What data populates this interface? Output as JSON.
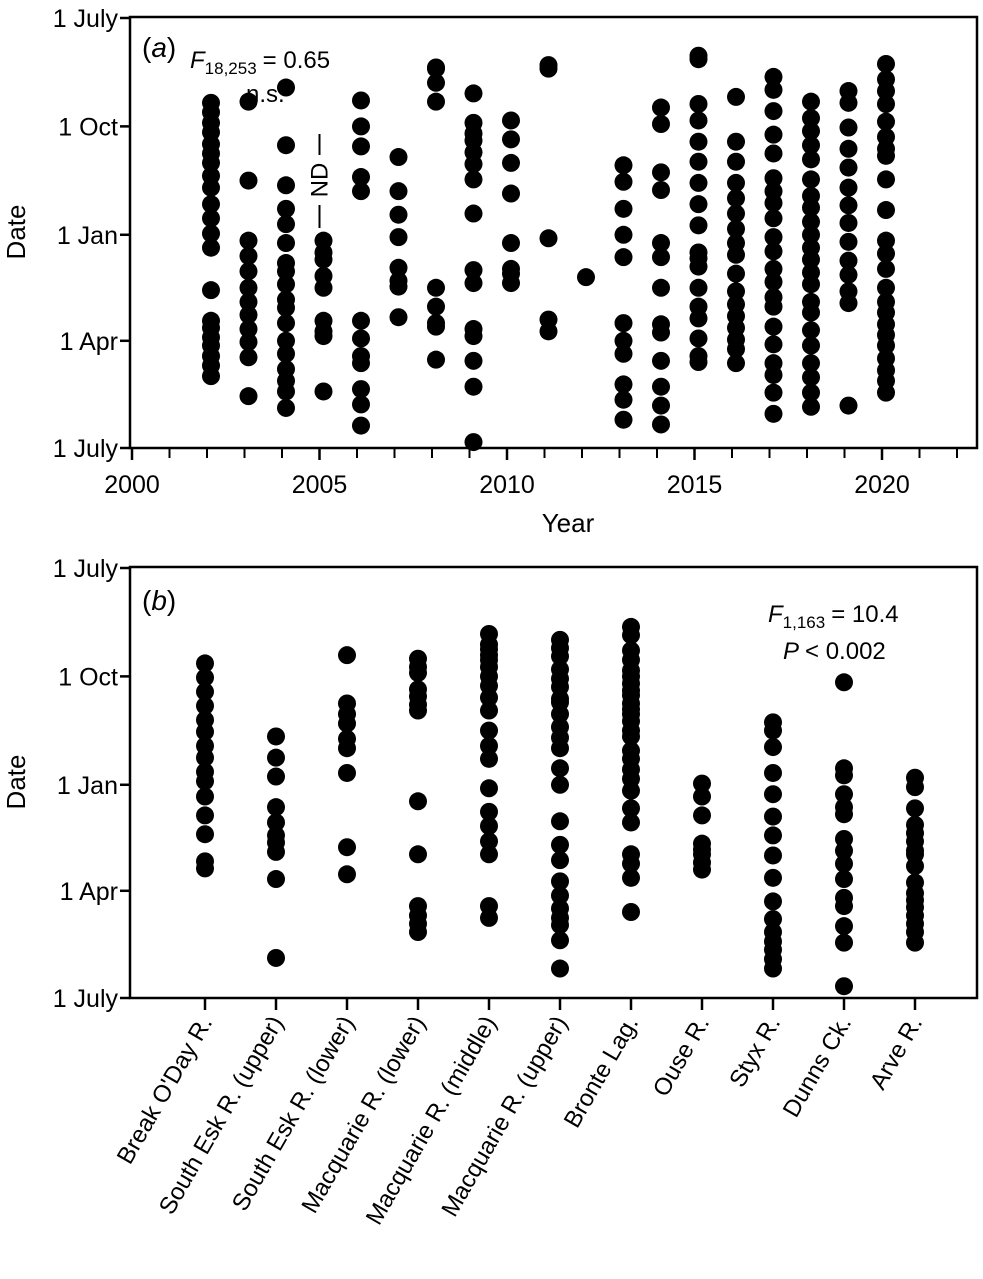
{
  "chart_data": [
    {
      "type": "scatter",
      "panel_label": "a",
      "xlabel": "Year",
      "ylabel": "Date",
      "xlim": [
        2000,
        2022.5
      ],
      "x_ticks": [
        2000,
        2005,
        2010,
        2015,
        2020
      ],
      "y_ticks": [
        "1 July",
        "1 Oct",
        "1 Jan",
        "1 Apr",
        "1 July"
      ],
      "y_axis_note": "dates from 1 July (top) to the following 1 July (bottom)",
      "stat_f_label": "F",
      "stat_f_subscript": "18,253",
      "stat_f_value": "= 0.65",
      "stat_significance": "n.s.",
      "annotation_nd": "ND",
      "annotation_nd_year": 2005,
      "points": [
        {
          "x": 2002,
          "y": [
            "11 Sep",
            "19 Sep",
            "28 Sep",
            "6 Oct",
            "16 Oct",
            "24 Oct",
            "1 Nov",
            "12 Nov",
            "22 Nov",
            "6 Dec",
            "18 Dec",
            "31 Dec",
            "12 Jan",
            "17 Feb",
            "15 Mar",
            "21 Mar",
            "29 Mar",
            "5 Apr",
            "14 Apr",
            "22 Apr",
            "1 May"
          ]
        },
        {
          "x": 2003,
          "y": [
            "10 Sep",
            "16 Nov",
            "6 Jan",
            "19 Jan",
            "1 Feb",
            "15 Feb",
            "27 Feb",
            "10 Mar",
            "22 Mar",
            "2 Apr",
            "15 Apr",
            "18 May"
          ]
        },
        {
          "x": 2004,
          "y": [
            "29 Aug",
            "17 Oct",
            "20 Nov",
            "10 Dec",
            "23 Dec",
            "8 Jan",
            "25 Jan",
            "1 Feb",
            "12 Feb",
            "25 Feb",
            "4 Mar",
            "17 Mar",
            "1 Apr",
            "12 Apr",
            "25 Apr",
            "5 May",
            "14 May",
            "28 May"
          ]
        },
        {
          "x": 2005,
          "y": [
            "6 Jan",
            "16 Jan",
            "22 Jan",
            "5 Feb",
            "15 Feb",
            "15 Mar",
            "24 Mar",
            "28 Mar",
            "14 May"
          ]
        },
        {
          "x": 2006,
          "y": [
            "9 Sep",
            "1 Oct",
            "18 Oct",
            "13 Nov",
            "25 Nov",
            "15 Mar",
            "30 Mar",
            "14 Apr",
            "20 Apr",
            "12 May",
            "25 May",
            "12 Jun"
          ]
        },
        {
          "x": 2007,
          "y": [
            "27 Oct",
            "25 Nov",
            "15 Dec",
            "3 Jan",
            "29 Jan",
            "9 Feb",
            "14 Feb",
            "12 Mar"
          ]
        },
        {
          "x": 2008,
          "y": [
            "12 Aug",
            "13 Aug",
            "25 Aug",
            "10 Sep",
            "15 Feb",
            "3 Mar",
            "17 Mar",
            "20 Mar",
            "17 Apr"
          ]
        },
        {
          "x": 2009,
          "y": [
            "3 Sep",
            "28 Sep",
            "7 Oct",
            "13 Oct",
            "23 Oct",
            "2 Nov",
            "15 Nov",
            "14 Dec",
            "31 Jan",
            "11 Feb",
            "22 Mar",
            "28 Mar",
            "18 Apr",
            "10 May",
            "26 Jun"
          ]
        },
        {
          "x": 2010,
          "y": [
            "26 Sep",
            "12 Oct",
            "1 Nov",
            "27 Nov",
            "8 Jan",
            "30 Jan",
            "3 Feb",
            "11 Feb"
          ]
        },
        {
          "x": 2011,
          "y": [
            "10 Aug",
            "13 Aug",
            "4 Jan",
            "14 Mar",
            "24 Mar"
          ]
        },
        {
          "x": 2012,
          "y": [
            "6 Feb"
          ]
        },
        {
          "x": 2013,
          "y": [
            "3 Nov",
            "17 Nov",
            "10 Dec",
            "1 Jan",
            "20 Jan",
            "17 Mar",
            "1 Apr",
            "12 Apr",
            "8 May",
            "21 May",
            "7 Jun"
          ]
        },
        {
          "x": 2014,
          "y": [
            "15 Sep",
            "29 Sep",
            "9 Nov",
            "24 Nov",
            "8 Jan",
            "20 Jan",
            "15 Feb",
            "18 Mar",
            "25 Mar",
            "18 Apr",
            "10 May",
            "26 May",
            "11 Jun"
          ]
        },
        {
          "x": 2015,
          "y": [
            "2 Aug",
            "5 Aug",
            "12 Sep",
            "26 Sep",
            "14 Oct",
            "31 Oct",
            "18 Nov",
            "6 Dec",
            "24 Dec",
            "16 Jan",
            "21 Jan",
            "28 Jan",
            "15 Feb",
            "3 Mar",
            "13 Mar",
            "30 Mar",
            "14 Apr",
            "19 Apr"
          ]
        },
        {
          "x": 2016,
          "y": [
            "6 Sep",
            "14 Oct",
            "31 Oct",
            "18 Nov",
            "1 Dec",
            "14 Dec",
            "27 Dec",
            "8 Jan",
            "18 Jan",
            "3 Feb",
            "18 Feb",
            "1 Mar",
            "11 Mar",
            "21 Mar",
            "31 Mar",
            "8 Apr",
            "20 Apr"
          ]
        },
        {
          "x": 2017,
          "y": [
            "20 Aug",
            "31 Aug",
            "18 Sep",
            "8 Oct",
            "24 Oct",
            "14 Nov",
            "25 Nov",
            "5 Dec",
            "18 Dec",
            "3 Jan",
            "15 Jan",
            "30 Jan",
            "10 Feb",
            "23 Feb",
            "3 Mar",
            "20 Mar",
            "4 Apr",
            "20 Apr",
            "30 Apr",
            "15 May",
            "2 Jun"
          ]
        },
        {
          "x": 2018,
          "y": [
            "10 Sep",
            "24 Sep",
            "5 Oct",
            "17 Oct",
            "29 Oct",
            "15 Nov",
            "29 Nov",
            "9 Dec",
            "21 Dec",
            "1 Jan",
            "12 Jan",
            "22 Jan",
            "2 Feb",
            "12 Feb",
            "27 Feb",
            "8 Mar",
            "23 Mar",
            "5 Apr",
            "20 Apr",
            "2 May",
            "15 May",
            "27 May"
          ]
        },
        {
          "x": 2019,
          "y": [
            "1 Sep",
            "11 Sep",
            "2 Oct",
            "20 Oct",
            "5 Nov",
            "22 Nov",
            "7 Dec",
            "22 Dec",
            "7 Jan",
            "23 Jan",
            "4 Feb",
            "18 Feb",
            "28 Feb",
            "26 May"
          ]
        },
        {
          "x": 2020,
          "y": [
            "9 Aug",
            "22 Aug",
            "1 Sep",
            "12 Sep",
            "27 Sep",
            "10 Oct",
            "20 Oct",
            "26 Oct",
            "15 Nov",
            "11 Dec",
            "6 Jan",
            "17 Jan",
            "30 Jan",
            "15 Feb",
            "27 Feb",
            "8 Mar",
            "18 Mar",
            "27 Mar",
            "5 Apr",
            "16 Apr",
            "26 Apr",
            "5 May",
            "15 May"
          ]
        }
      ]
    },
    {
      "type": "scatter",
      "panel_label": "b",
      "xlabel": "",
      "ylabel": "Date",
      "y_ticks": [
        "1 July",
        "1 Oct",
        "1 Jan",
        "1 Apr",
        "1 July"
      ],
      "stat_f_label": "F",
      "stat_f_subscript": "1,163",
      "stat_f_value": "= 10.4",
      "stat_p_label": "P",
      "stat_p_value": "< 0.002",
      "categories": [
        "Break O'Day R.",
        "South Esk R. (upper)",
        "South Esk R. (lower)",
        "Macquarie R. (lower)",
        "Macquarie R. (middle)",
        "Macquarie R. (upper)",
        "Bronte Lag.",
        "Ouse R.",
        "Styx R.",
        "Dunns Ck.",
        "Arve R."
      ],
      "points": [
        {
          "category": "Break O'Day R.",
          "y": [
            "20 Sep",
            "2 Oct",
            "14 Oct",
            "26 Oct",
            "7 Nov",
            "17 Nov",
            "29 Nov",
            "9 Dec",
            "21 Dec",
            "29 Dec",
            "11 Jan",
            "27 Jan",
            "12 Feb",
            "7 Mar",
            "13 Mar"
          ]
        },
        {
          "category": "South Esk R. (upper)",
          "y": [
            "21 Nov",
            "9 Dec",
            "25 Dec",
            "20 Jan",
            "2 Feb",
            "13 Feb",
            "19 Feb",
            "27 Feb",
            "22 Mar",
            "28 May"
          ]
        },
        {
          "category": "South Esk R. (lower)",
          "y": [
            "13 Sep",
            "24 Oct",
            "2 Nov",
            "10 Nov",
            "23 Nov",
            "1 Dec",
            "22 Dec",
            "23 Feb",
            "18 Mar"
          ]
        },
        {
          "category": "Macquarie R. (lower)",
          "y": [
            "16 Sep",
            "23 Sep",
            "28 Sep",
            "12 Oct",
            "18 Oct",
            "25 Oct",
            "30 Oct",
            "15 Jan",
            "1 Mar",
            "14 Apr",
            "22 Apr",
            "29 Apr",
            "6 May"
          ]
        },
        {
          "category": "Macquarie R. (middle)",
          "y": [
            "26 Aug",
            "4 Sep",
            "8 Sep",
            "13 Sep",
            "17 Sep",
            "23 Sep",
            "1 Oct",
            "9 Oct",
            "19 Oct",
            "30 Oct",
            "16 Nov",
            "29 Nov",
            "10 Dec",
            "4 Jan",
            "24 Jan",
            "5 Feb",
            "18 Feb",
            "1 Mar",
            "14 Apr",
            "24 Apr"
          ]
        },
        {
          "category": "Macquarie R. (upper)",
          "y": [
            "31 Aug",
            "7 Sep",
            "14 Sep",
            "25 Sep",
            "3 Oct",
            "10 Oct",
            "20 Oct",
            "23 Oct",
            "2 Nov",
            "13 Nov",
            "22 Nov",
            "1 Dec",
            "18 Dec",
            "1 Jan",
            "1 Feb",
            "21 Feb",
            "6 Mar",
            "24 Mar",
            "5 Apr",
            "16 Apr",
            "24 Apr",
            "30 Apr",
            "13 May",
            "6 Jun"
          ]
        },
        {
          "category": "Bronte Lag.",
          "y": [
            "20 Aug",
            "27 Aug",
            "9 Sep",
            "17 Sep",
            "26 Sep",
            "1 Oct",
            "7 Oct",
            "13 Oct",
            "17 Oct",
            "24 Oct",
            "29 Oct",
            "2 Nov",
            "8 Nov",
            "16 Nov",
            "21 Nov",
            "3 Dec",
            "10 Dec",
            "19 Dec",
            "27 Dec",
            "6 Jan",
            "21 Jan",
            "2 Feb",
            "1 Mar",
            "9 Mar",
            "21 Mar",
            "19 Apr"
          ]
        },
        {
          "category": "Ouse R.",
          "y": [
            "31 Dec",
            "11 Jan",
            "27 Jan",
            "20 Feb",
            "25 Feb",
            "1 Mar",
            "8 Mar",
            "14 Mar"
          ]
        },
        {
          "category": "Styx R.",
          "y": [
            "9 Nov",
            "16 Nov",
            "30 Nov",
            "22 Dec",
            "9 Jan",
            "28 Jan",
            "13 Feb",
            "2 Mar",
            "21 Mar",
            "10 Apr",
            "25 Apr",
            "6 May",
            "14 May",
            "21 May",
            "29 May",
            "6 Jun"
          ]
        },
        {
          "category": "Dunns Ck.",
          "y": [
            "6 Oct",
            "18 Dec",
            "24 Dec",
            "9 Jan",
            "20 Jan",
            "26 Jan",
            "16 Feb",
            "26 Feb",
            "9 Mar",
            "22 Mar",
            "7 Apr",
            "14 Apr",
            "1 May",
            "15 May",
            "21 Jun"
          ]
        },
        {
          "category": "Arve R.",
          "y": [
            "26 Dec",
            "3 Jan",
            "21 Jan",
            "4 Feb",
            "11 Feb",
            "18 Feb",
            "26 Feb",
            "1 Mar",
            "11 Mar",
            "25 Mar",
            "3 Apr",
            "9 Apr",
            "15 Apr",
            "22 Apr",
            "29 Apr",
            "6 May",
            "15 May"
          ]
        }
      ]
    }
  ]
}
